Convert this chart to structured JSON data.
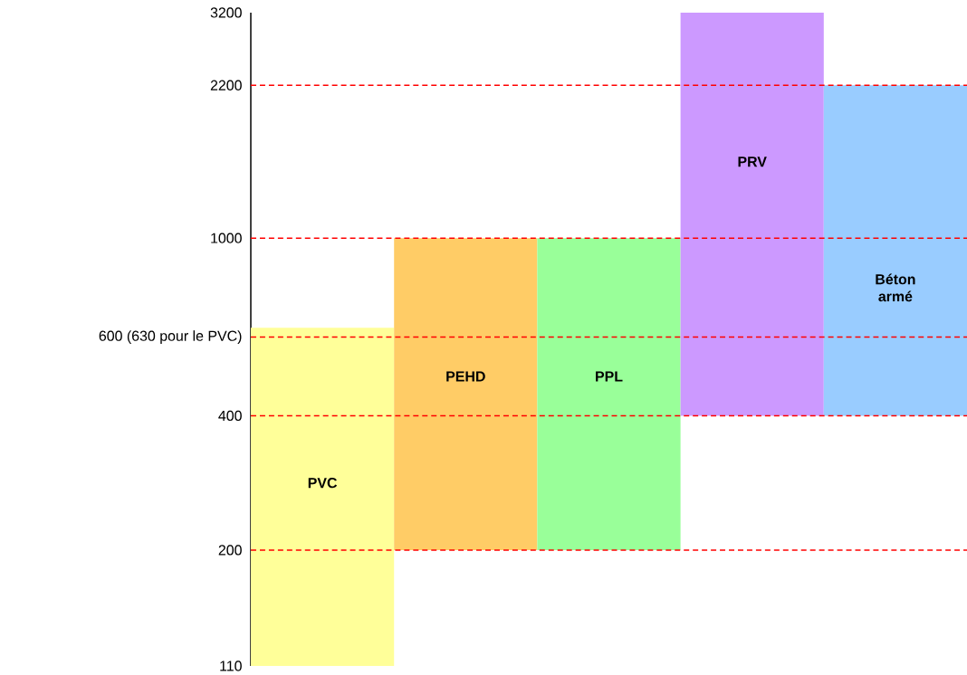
{
  "chart_data": {
    "type": "bar",
    "categories": [
      "PVC",
      "PEHD",
      "PPL",
      "PRV",
      "Béton armé"
    ],
    "base": [
      110,
      200,
      200,
      400,
      400
    ],
    "values": [
      520,
      800,
      800,
      2800,
      1800
    ],
    "colors": [
      "#ffff99",
      "#ffcc66",
      "#99ff99",
      "#cc99ff",
      "#99ccff"
    ],
    "log": "y",
    "ylim": [
      110,
      3200
    ],
    "yticks": [
      110,
      200,
      400,
      {
        "value": 600,
        "label": "600 (630 pour le PVC)"
      },
      1000,
      2200,
      3200
    ],
    "grid": false,
    "ref_lines": [
      {
        "axis": "y",
        "value": 200,
        "color": "#ff0000",
        "line_style": "dashed"
      },
      {
        "axis": "y",
        "value": 400,
        "color": "#ff0000",
        "line_style": "dashed"
      },
      {
        "axis": "y",
        "value": 600,
        "color": "#ff0000",
        "line_style": "dashed"
      },
      {
        "axis": "y",
        "value": 1000,
        "color": "#ff0000",
        "line_style": "dashed"
      },
      {
        "axis": "y",
        "value": 2200,
        "color": "#ff0000",
        "line_style": "dashed"
      }
    ]
  }
}
